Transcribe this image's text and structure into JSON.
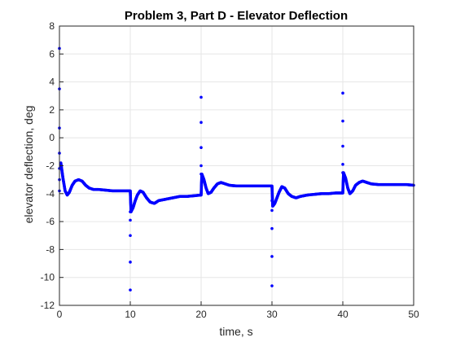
{
  "chart_data": {
    "type": "scatter",
    "title": "Problem 3, Part D - Elevator Deflection",
    "xlabel": "time, s",
    "ylabel": "elevator deflection, deg",
    "xlim": [
      0,
      50
    ],
    "ylim": [
      -12,
      8
    ],
    "xticks": [
      0,
      10,
      20,
      30,
      40,
      50
    ],
    "yticks": [
      -12,
      -10,
      -8,
      -6,
      -4,
      -2,
      0,
      2,
      4,
      6,
      8
    ],
    "grid": true,
    "marker": "dot",
    "colors": {
      "series": "#0000ff",
      "grid": "#e6e6e6",
      "axis": "#262626"
    },
    "series": [
      {
        "description": "dense response trace (piecewise between step inputs)",
        "x": [
          0.2,
          0.5,
          0.8,
          1.1,
          1.4,
          1.8,
          2.2,
          2.7,
          3.2,
          3.7,
          4.2,
          4.8,
          5.5,
          6.5,
          7.5,
          8.5,
          9.5,
          10.0,
          10.1,
          10.4,
          10.7,
          11.0,
          11.4,
          11.8,
          12.3,
          12.8,
          13.4,
          14.0,
          15.0,
          16.0,
          17.0,
          18.0,
          19.0,
          20.0,
          20.1,
          20.4,
          20.7,
          21.0,
          21.4,
          21.8,
          22.3,
          22.8,
          23.4,
          24.0,
          25.0,
          26.0,
          27.0,
          28.0,
          29.0,
          30.0,
          30.1,
          30.4,
          30.7,
          31.0,
          31.4,
          31.8,
          32.3,
          32.8,
          33.4,
          34.0,
          35.0,
          36.0,
          37.0,
          38.0,
          39.0,
          40.0,
          40.1,
          40.4,
          40.7,
          41.0,
          41.4,
          41.8,
          42.3,
          42.8,
          43.4,
          44.0,
          45.0,
          46.0,
          47.0,
          48.0,
          49.0,
          50.0
        ],
        "y": [
          -1.8,
          -2.9,
          -3.8,
          -4.1,
          -3.9,
          -3.4,
          -3.1,
          -3.0,
          -3.1,
          -3.4,
          -3.6,
          -3.7,
          -3.7,
          -3.75,
          -3.8,
          -3.8,
          -3.8,
          -3.8,
          -5.3,
          -5.0,
          -4.5,
          -4.1,
          -3.8,
          -3.9,
          -4.3,
          -4.6,
          -4.7,
          -4.5,
          -4.4,
          -4.3,
          -4.2,
          -4.2,
          -4.15,
          -4.1,
          -2.6,
          -3.0,
          -3.6,
          -4.0,
          -3.9,
          -3.6,
          -3.3,
          -3.2,
          -3.3,
          -3.4,
          -3.45,
          -3.45,
          -3.45,
          -3.45,
          -3.45,
          -3.45,
          -4.9,
          -4.7,
          -4.3,
          -3.9,
          -3.5,
          -3.6,
          -4.0,
          -4.2,
          -4.3,
          -4.2,
          -4.1,
          -4.05,
          -4.0,
          -4.0,
          -3.95,
          -3.95,
          -2.5,
          -2.9,
          -3.6,
          -4.0,
          -3.8,
          -3.4,
          -3.2,
          -3.1,
          -3.2,
          -3.3,
          -3.35,
          -3.35,
          -3.35,
          -3.35,
          -3.35,
          -3.4
        ]
      },
      {
        "description": "transient spike samples at step inputs",
        "x": [
          0.0,
          0.0,
          0.0,
          0.0,
          0.0,
          0.0,
          0.0,
          10.0,
          10.0,
          10.0,
          10.0,
          10.0,
          20.0,
          20.0,
          20.0,
          20.0,
          20.0,
          30.0,
          30.0,
          30.0,
          30.0,
          30.0,
          40.0,
          40.0,
          40.0,
          40.0,
          40.0
        ],
        "y": [
          6.4,
          3.5,
          0.7,
          -1.1,
          -2.2,
          -3.0,
          -3.8,
          -10.9,
          -8.9,
          -7.0,
          -5.9,
          -5.3,
          2.9,
          1.1,
          -0.7,
          -2.0,
          -2.6,
          -10.6,
          -8.5,
          -6.5,
          -5.2,
          -4.5,
          3.2,
          1.2,
          -0.6,
          -1.9,
          -2.5
        ]
      }
    ]
  }
}
